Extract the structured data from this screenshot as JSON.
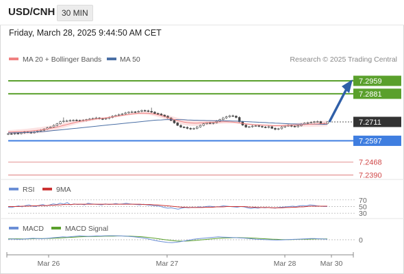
{
  "header": {
    "symbol": "USD/CNH",
    "timeframe": "30 MIN",
    "datetime": "Friday, March 28, 2025 9:44:50 AM CET"
  },
  "legend": {
    "ma20_label": "MA 20 + Bollinger Bands",
    "ma50_label": "MA 50",
    "credit": "Research © 2025 Trading Central",
    "rsi_label": "RSI",
    "rsi_signal_label": "9MA",
    "macd_label": "MACD",
    "macd_signal_label": "MACD Signal"
  },
  "colors": {
    "ma20": "#f08080",
    "ma50": "#4a6fa5",
    "band_fill": "#fcdede",
    "resistance": "#5aa02c",
    "support": "#3f7ee0",
    "target_red": "#d04848",
    "last_price": "#333333",
    "arrow": "#2f5fa8",
    "rsi": "#6b8fd6",
    "rsi_ma": "#cc3333",
    "macd": "#6b8fd6",
    "macd_signal": "#5aa02c",
    "candle_up": "#ffffff",
    "candle_down": "#444444"
  },
  "chart_data": {
    "type": "candlestick",
    "x_ticks": [
      "Mar 26",
      "Mar 27",
      "Mar 28",
      "Mar 30"
    ],
    "ylim": [
      7.238,
      7.305
    ],
    "levels": [
      {
        "value": 7.2959,
        "label": "7.2959",
        "kind": "resistance"
      },
      {
        "value": 7.2881,
        "label": "7.2881",
        "kind": "resistance"
      },
      {
        "value": 7.2711,
        "label": "7.2711",
        "kind": "last"
      },
      {
        "value": 7.2597,
        "label": "7.2597",
        "kind": "support"
      },
      {
        "value": 7.2468,
        "label": "7.2468",
        "kind": "target"
      },
      {
        "value": 7.239,
        "label": "7.2390",
        "kind": "target"
      }
    ],
    "projection": {
      "from": 7.2711,
      "to": 7.2959
    },
    "closes": [
      7.264,
      7.2638,
      7.2642,
      7.264,
      7.2645,
      7.265,
      7.2648,
      7.2645,
      7.265,
      7.2655,
      7.266,
      7.2668,
      7.2675,
      7.268,
      7.269,
      7.27,
      7.2712,
      7.2716,
      7.2718,
      7.272,
      7.2722,
      7.272,
      7.2718,
      7.272,
      7.2725,
      7.2728,
      7.2732,
      7.2735,
      7.273,
      7.2728,
      7.2732,
      7.2738,
      7.2745,
      7.275,
      7.2755,
      7.276,
      7.2765,
      7.277,
      7.2772,
      7.277,
      7.2775,
      7.278,
      7.2778,
      7.2775,
      7.277,
      7.2762,
      7.2758,
      7.2752,
      7.2745,
      7.2735,
      7.272,
      7.2705,
      7.269,
      7.268,
      7.2678,
      7.2672,
      7.2668,
      7.2672,
      7.268,
      7.269,
      7.27,
      7.2705,
      7.2702,
      7.2706,
      7.2715,
      7.2725,
      7.2735,
      7.2742,
      7.2748,
      7.2746,
      7.2738,
      7.2712,
      7.2692,
      7.268,
      7.2682,
      7.2686,
      7.2688,
      7.2684,
      7.268,
      7.2678,
      7.2682,
      7.2672,
      7.2666,
      7.267,
      7.268,
      7.2686,
      7.269,
      7.2685,
      7.2682,
      7.2688,
      7.2697,
      7.2703,
      7.2706,
      7.2708,
      7.2712,
      7.2713,
      7.27,
      7.27,
      7.2711
    ],
    "ma20": [
      7.265,
      7.265,
      7.2651,
      7.2652,
      7.2652,
      7.2653,
      7.2654,
      7.2656,
      7.2658,
      7.266,
      7.2662,
      7.2665,
      7.2668,
      7.2672,
      7.2676,
      7.268,
      7.2685,
      7.269,
      7.2695,
      7.27,
      7.2705,
      7.271,
      7.2714,
      7.2717,
      7.272,
      7.2723,
      7.2726,
      7.2729,
      7.2731,
      7.2733,
      7.2735,
      7.2738,
      7.2741,
      7.2744,
      7.2747,
      7.275,
      7.2753,
      7.2756,
      7.2759,
      7.2761,
      7.2763,
      7.2764,
      7.2764,
      7.2763,
      7.2761,
      7.2758,
      7.2754,
      7.2749,
      7.2743,
      7.2737,
      7.2731,
      7.2725,
      7.2719,
      7.2714,
      7.271,
      7.2707,
      7.2705,
      7.2704,
      7.2704,
      7.2705,
      7.2706,
      7.2707,
      7.2708,
      7.2709,
      7.271,
      7.2711,
      7.2712,
      7.2712,
      7.2711,
      7.271,
      7.2708,
      7.2705,
      7.2702,
      7.2699,
      7.2697,
      7.2695,
      7.2694,
      7.2693,
      7.2692,
      7.2691,
      7.269,
      7.2689,
      7.2688,
      7.2688,
      7.2688,
      7.2689,
      7.269,
      7.2691,
      7.2692,
      7.2693,
      7.2694,
      7.2695,
      7.2696,
      7.2697,
      7.2698,
      7.2699,
      7.27,
      7.2701,
      7.2702
    ],
    "ma50": [
      7.2645,
      7.2645,
      7.2646,
      7.2646,
      7.2647,
      7.2647,
      7.2648,
      7.2649,
      7.265,
      7.2651,
      7.2652,
      7.2653,
      7.2655,
      7.2657,
      7.2659,
      7.2661,
      7.2663,
      7.2665,
      7.2667,
      7.2669,
      7.2671,
      7.2673,
      7.2675,
      7.2677,
      7.2679,
      7.2681,
      7.2683,
      7.2685,
      7.2687,
      7.2689,
      7.2691,
      7.2693,
      7.2695,
      7.2697,
      7.2699,
      7.2701,
      7.2703,
      7.2705,
      7.2707,
      7.2709,
      7.2711,
      7.2713,
      7.2715,
      7.2717,
      7.2719,
      7.2721,
      7.2722,
      7.2723,
      7.2724,
      7.2725,
      7.2725,
      7.2725,
      7.2725,
      7.2724,
      7.2724,
      7.2723,
      7.2722,
      7.2721,
      7.2721,
      7.272,
      7.272,
      7.2719,
      7.2719,
      7.2718,
      7.2718,
      7.2718,
      7.2718,
      7.2717,
      7.2717,
      7.2716,
      7.2716,
      7.2715,
      7.2714,
      7.2713,
      7.2712,
      7.2711,
      7.271,
      7.2709,
      7.2708,
      7.2707,
      7.2706,
      7.2705,
      7.2704,
      7.2703,
      7.2702,
      7.2701,
      7.27,
      7.2699,
      7.2699,
      7.2698,
      7.2698,
      7.2697,
      7.2697,
      7.2697,
      7.2697,
      7.2697,
      7.2697,
      7.2697,
      7.2697
    ],
    "rsi": {
      "ticks": [
        "70",
        "50",
        "30"
      ],
      "ylim": [
        20,
        80
      ],
      "values": [
        48,
        47,
        50,
        52,
        49,
        53,
        55,
        51,
        50,
        54,
        56,
        52,
        55,
        58,
        56,
        60,
        57,
        62,
        55,
        58,
        56,
        57,
        55,
        60,
        58,
        57,
        56,
        55,
        58,
        56,
        57,
        59,
        57,
        58,
        60,
        58,
        57,
        56,
        55,
        57,
        55,
        54,
        53,
        52,
        50,
        47,
        45,
        46,
        44,
        42,
        45,
        47,
        46,
        48,
        47,
        49,
        48,
        50,
        51,
        50,
        49,
        50,
        52,
        51,
        50,
        49,
        48,
        50,
        49,
        46,
        44,
        46,
        45,
        47,
        46,
        47,
        46,
        45,
        47,
        48,
        49,
        50,
        51,
        50,
        52,
        53,
        52,
        55,
        54,
        52,
        51,
        50,
        50
      ],
      "ma": [
        50,
        50,
        50,
        50,
        51,
        51,
        51,
        52,
        52,
        53,
        53,
        53,
        54,
        54,
        55,
        55,
        56,
        56,
        56,
        57,
        57,
        57,
        57,
        57,
        57,
        57,
        57,
        57,
        57,
        57,
        57,
        57,
        57,
        57,
        57,
        57,
        57,
        57,
        57,
        56,
        56,
        56,
        55,
        55,
        54,
        53,
        52,
        51,
        50,
        49,
        48,
        48,
        47,
        47,
        47,
        47,
        47,
        48,
        48,
        48,
        49,
        49,
        49,
        50,
        50,
        50,
        50,
        50,
        50,
        49,
        48,
        48,
        47,
        47,
        47,
        47,
        46,
        46,
        46,
        46,
        47,
        47,
        48,
        48,
        49,
        49,
        50,
        51,
        51,
        51,
        51,
        51,
        51
      ]
    },
    "macd": {
      "zero_label": "0",
      "ylim": [
        -1,
        1
      ],
      "values": [
        0.05,
        0.08,
        0.06,
        0.05,
        0.08,
        0.12,
        0.15,
        0.12,
        0.1,
        0.14,
        0.18,
        0.22,
        0.26,
        0.3,
        0.28,
        0.32,
        0.36,
        0.4,
        0.38,
        0.36,
        0.38,
        0.4,
        0.39,
        0.41,
        0.42,
        0.42,
        0.41,
        0.4,
        0.38,
        0.34,
        0.3,
        0.25,
        0.2,
        0.12,
        0.02,
        -0.08,
        -0.16,
        -0.22,
        -0.28,
        -0.3,
        -0.26,
        -0.2,
        -0.12,
        -0.04,
        0.04,
        0.1,
        0.14,
        0.18,
        0.22,
        0.26,
        0.3,
        0.28,
        0.26,
        0.24,
        0.22,
        0.2,
        0.18,
        0.14,
        0.1,
        0.06,
        0.04,
        0.02,
        0.0,
        -0.02,
        -0.03,
        -0.02,
        0.0,
        0.02,
        0.04,
        0.06,
        0.08,
        0.1,
        0.12,
        0.12,
        0.1,
        0.08,
        0.06
      ],
      "signal": [
        0.1,
        0.1,
        0.1,
        0.09,
        0.09,
        0.1,
        0.11,
        0.12,
        0.12,
        0.13,
        0.14,
        0.16,
        0.18,
        0.21,
        0.23,
        0.25,
        0.28,
        0.3,
        0.32,
        0.33,
        0.34,
        0.35,
        0.36,
        0.37,
        0.38,
        0.38,
        0.39,
        0.39,
        0.38,
        0.37,
        0.35,
        0.33,
        0.3,
        0.26,
        0.21,
        0.15,
        0.09,
        0.03,
        -0.03,
        -0.08,
        -0.12,
        -0.14,
        -0.14,
        -0.12,
        -0.09,
        -0.05,
        -0.01,
        0.03,
        0.07,
        0.11,
        0.15,
        0.18,
        0.2,
        0.21,
        0.22,
        0.22,
        0.21,
        0.2,
        0.18,
        0.16,
        0.13,
        0.11,
        0.08,
        0.06,
        0.04,
        0.02,
        0.02,
        0.02,
        0.03,
        0.04,
        0.05,
        0.06,
        0.07,
        0.08,
        0.09,
        0.09,
        0.09
      ]
    }
  }
}
